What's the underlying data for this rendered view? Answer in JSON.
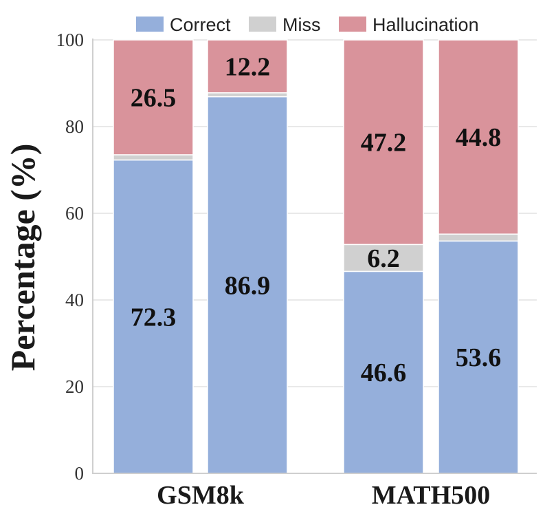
{
  "chart_data": {
    "type": "bar",
    "stacked": true,
    "ylabel": "Percentage (%)",
    "ylim": [
      0,
      100
    ],
    "yticks": [
      "0",
      "20",
      "40",
      "60",
      "80",
      "100"
    ],
    "grid": true,
    "legend_position": "top",
    "groups": [
      "GSM8k",
      "MATH500"
    ],
    "bars_per_group": 2,
    "series": [
      {
        "name": "Correct",
        "color": "#95afdb",
        "values": [
          72.3,
          86.9,
          46.6,
          53.6
        ]
      },
      {
        "name": "Miss",
        "color": "#d0d0d0",
        "values": [
          1.2,
          0.9,
          6.2,
          1.6
        ]
      },
      {
        "name": "Hallucination",
        "color": "#d9939b",
        "values": [
          26.5,
          12.2,
          47.2,
          44.8
        ]
      }
    ],
    "data_labels": [
      [
        "72.3",
        "86.9",
        "46.6",
        "53.6"
      ],
      [
        "",
        "",
        "6.2",
        ""
      ],
      [
        "26.5",
        "12.2",
        "47.2",
        "44.8"
      ]
    ]
  }
}
